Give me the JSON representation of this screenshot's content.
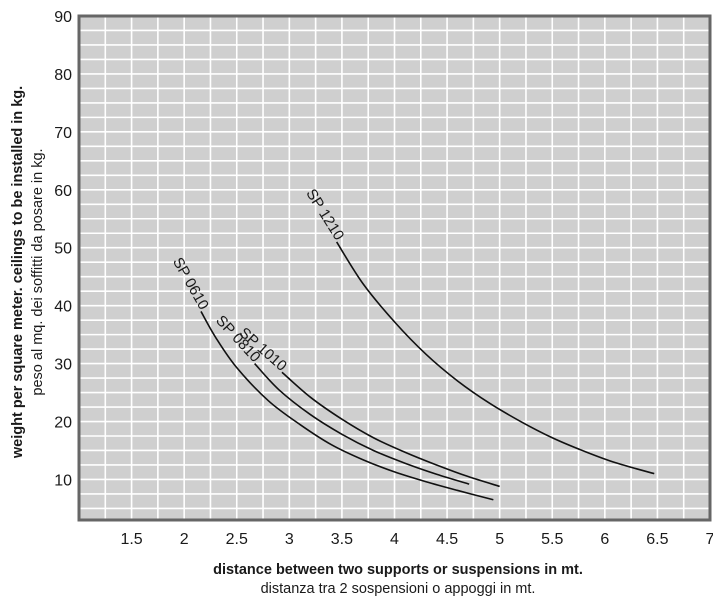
{
  "chart_data": {
    "type": "line",
    "xlabel": "distance between two supports or suspensions in mt.",
    "xlabel_sub": "distanza tra 2 sospensioni o appoggi in mt.",
    "ylabel": "weight per square meter. ceilings to be installed in kg.",
    "ylabel_sub": "peso al mq. dei  soffitti da posare in kg.",
    "xlim": [
      1,
      7
    ],
    "ylim": [
      3,
      90
    ],
    "x_ticks": [
      1.5,
      2,
      2.5,
      3,
      3.5,
      4,
      4.5,
      5,
      5.5,
      6,
      6.5,
      7
    ],
    "x_tick_labels": [
      "1.5",
      "2",
      "2.5",
      "3",
      "3.5",
      "4",
      "4.5",
      "5",
      "5.5",
      "6",
      "6.5",
      "7"
    ],
    "y_ticks": [
      10,
      20,
      30,
      40,
      50,
      60,
      70,
      80,
      90
    ],
    "y_tick_labels": [
      "10",
      "20",
      "30",
      "40",
      "50",
      "60",
      "70",
      "80",
      "90"
    ],
    "grid": true,
    "background_color": "#cfcfcf",
    "grid_color": "#ffffff",
    "line_color": "#111111",
    "series": [
      {
        "name": "SP 0610",
        "x": [
          2.16,
          2.3,
          2.5,
          2.8,
          3.1,
          3.4,
          3.7,
          4.0,
          4.3,
          4.6,
          4.94
        ],
        "y": [
          39,
          34.5,
          29.3,
          23.6,
          19.5,
          16.0,
          13.4,
          11.3,
          9.6,
          8.1,
          6.5
        ]
      },
      {
        "name": "SP 0810",
        "x": [
          2.67,
          2.9,
          3.2,
          3.5,
          3.8,
          4.1,
          4.4,
          4.71
        ],
        "y": [
          30,
          25.5,
          21.2,
          17.8,
          15.0,
          12.8,
          10.9,
          9.2
        ]
      },
      {
        "name": "SP 1010",
        "x": [
          2.93,
          3.2,
          3.5,
          3.8,
          4.1,
          4.4,
          4.7,
          5.0
        ],
        "y": [
          28.5,
          24.2,
          20.4,
          17.2,
          14.7,
          12.5,
          10.5,
          8.8
        ]
      },
      {
        "name": "SP 1210",
        "x": [
          3.45,
          3.7,
          4.0,
          4.3,
          4.6,
          4.9,
          5.2,
          5.5,
          5.8,
          6.1,
          6.47
        ],
        "y": [
          51,
          43.8,
          37.2,
          31.6,
          27.0,
          23.2,
          20.0,
          17.2,
          14.9,
          12.9,
          11.0
        ]
      }
    ]
  }
}
